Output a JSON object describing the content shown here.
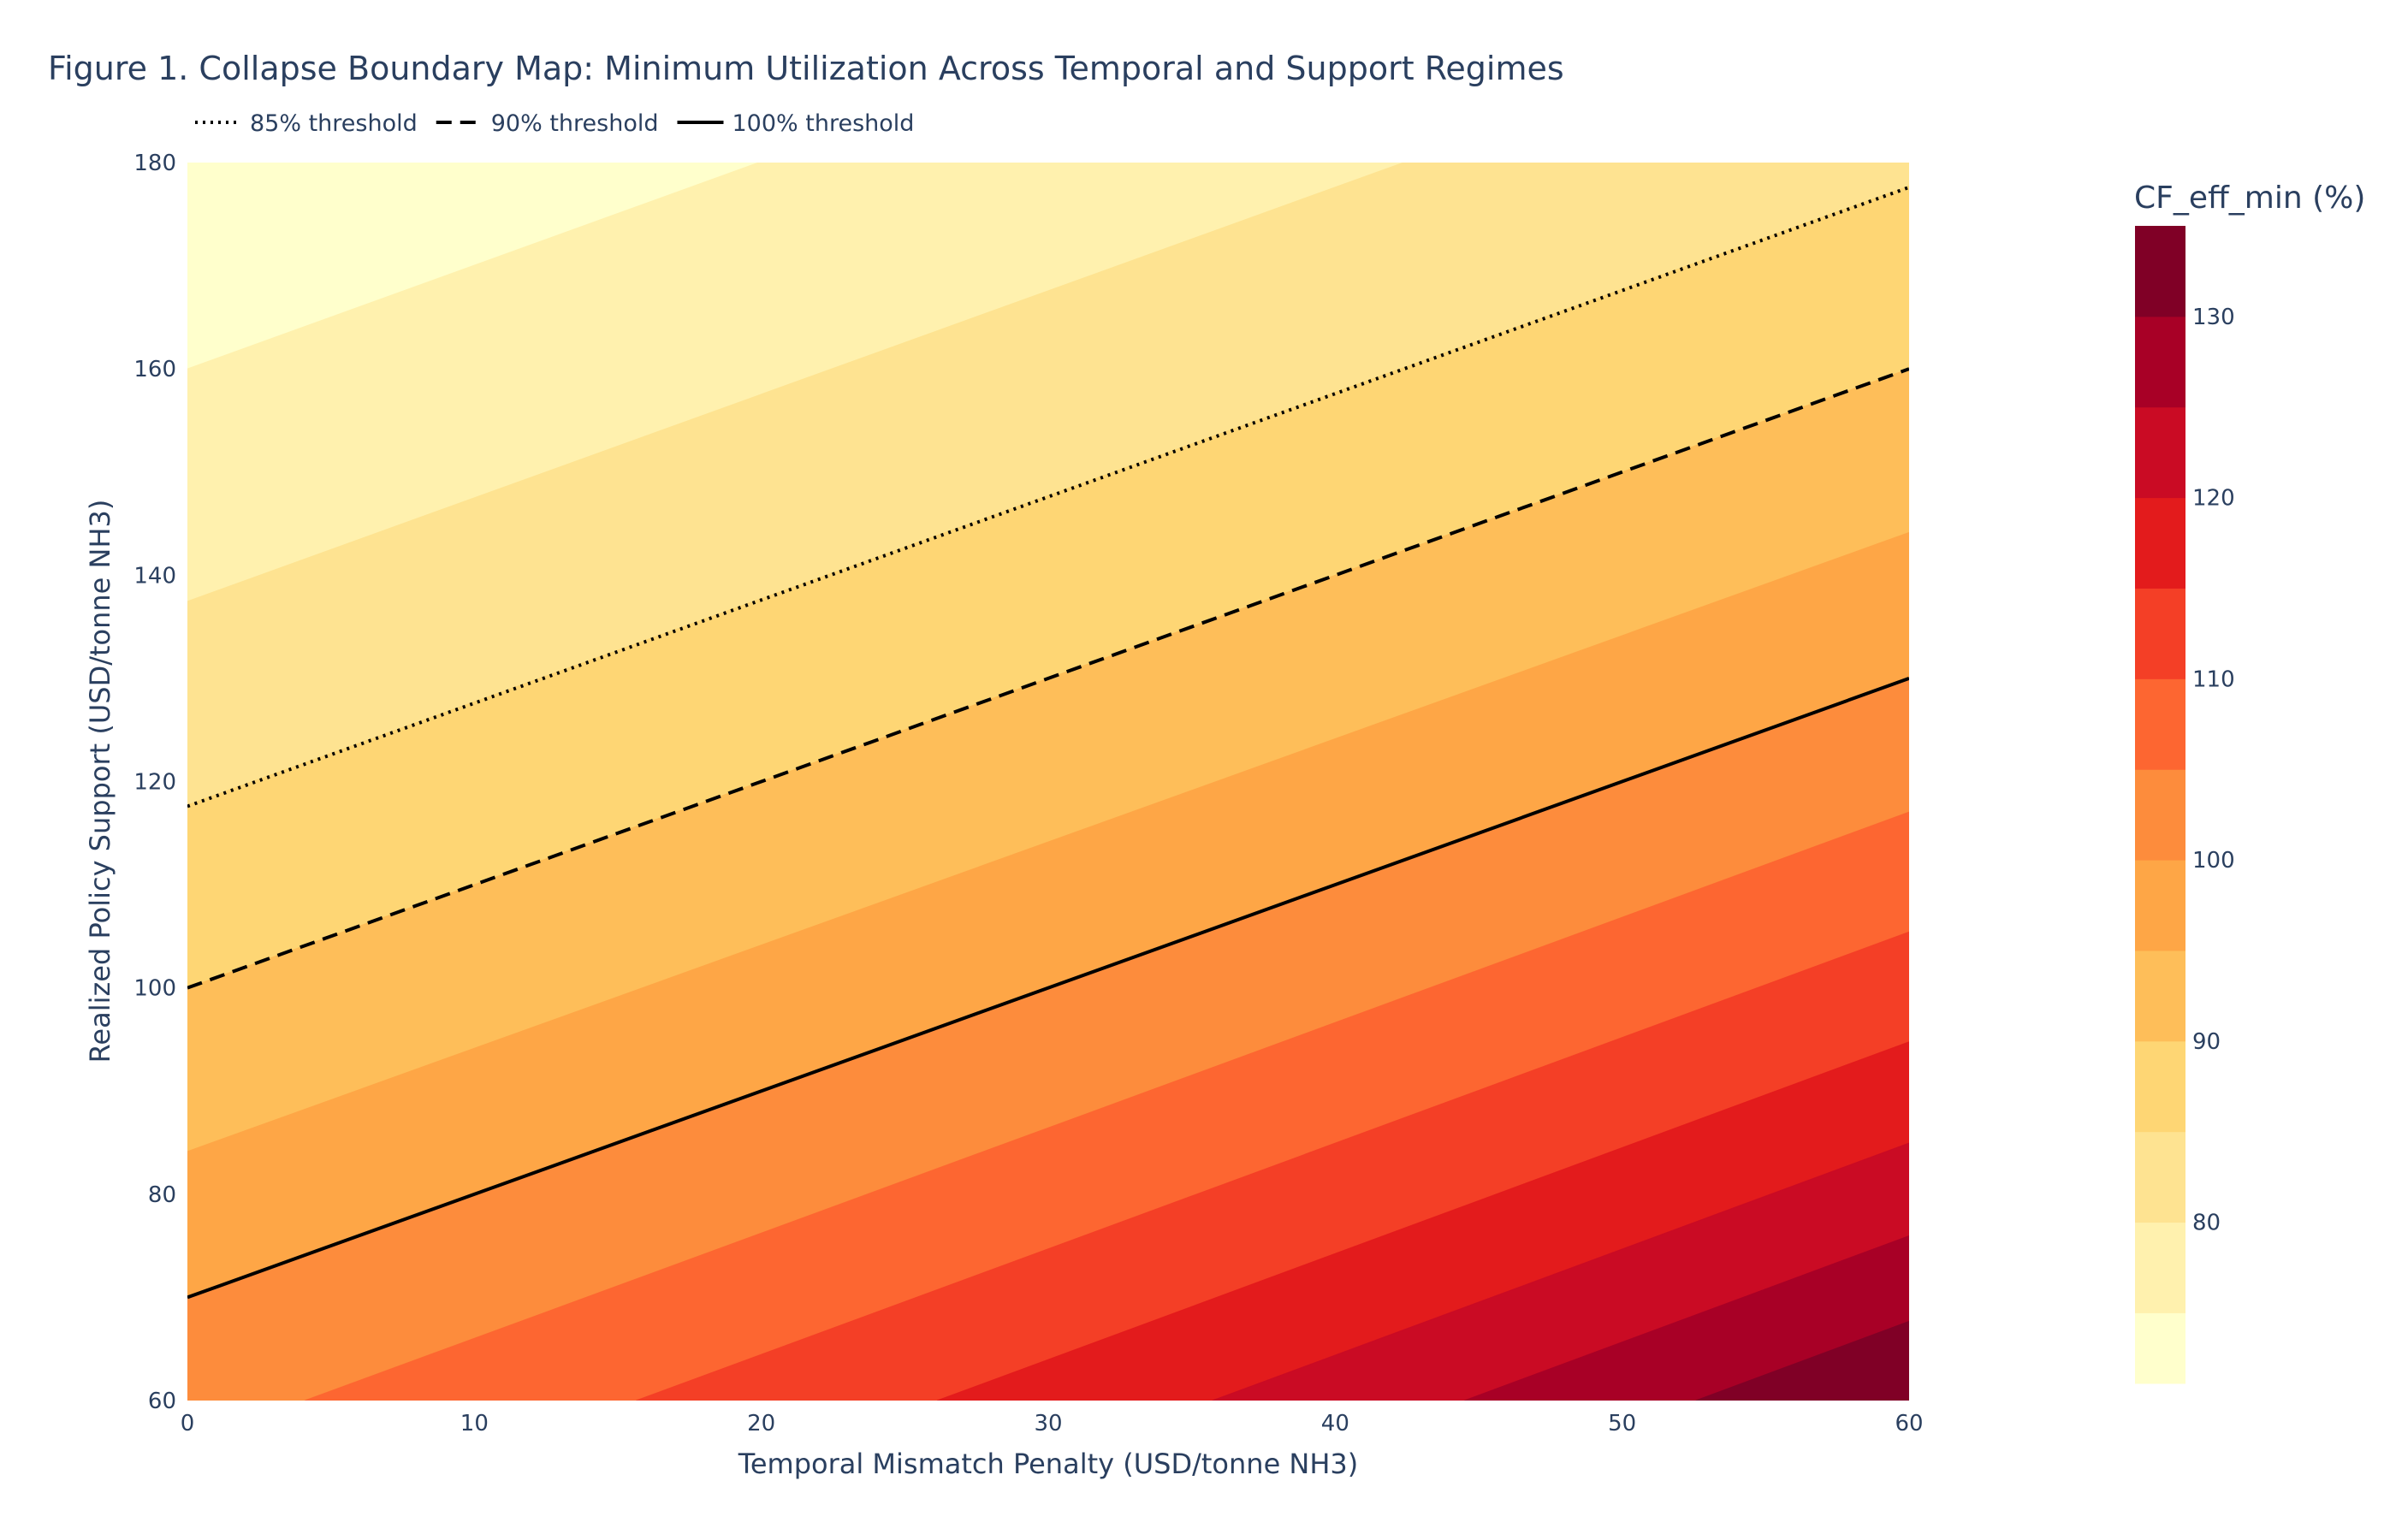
{
  "chart_data": {
    "type": "contour",
    "title": "Figure 1. Collapse Boundary Map: Minimum Utilization Across Temporal and Support Regimes",
    "xlabel": "Temporal Mismatch Penalty (USD/tonne NH3)",
    "ylabel": "Realized Policy Support (USD/tonne NH3)",
    "xlim": [
      0,
      60
    ],
    "ylim": [
      60,
      180
    ],
    "xticks": [
      0,
      10,
      20,
      30,
      40,
      50,
      60
    ],
    "yticks": [
      60,
      80,
      100,
      120,
      140,
      160,
      180
    ],
    "x": [
      0,
      10,
      20,
      30,
      40,
      50,
      60
    ],
    "y": [
      60,
      80,
      100,
      120,
      140,
      160,
      180
    ],
    "z": [
      [
        103.8,
        108.0,
        112.5,
        117.4,
        122.7,
        128.6,
        135.0
      ],
      [
        96.4,
        100.0,
        103.8,
        108.0,
        112.5,
        117.4,
        122.7
      ],
      [
        90.0,
        93.1,
        96.4,
        100.0,
        103.8,
        108.0,
        112.5
      ],
      [
        84.4,
        87.1,
        90.0,
        93.1,
        96.4,
        100.0,
        103.8
      ],
      [
        79.4,
        81.8,
        84.4,
        87.1,
        90.0,
        93.1,
        96.4
      ],
      [
        75.0,
        77.1,
        79.4,
        81.8,
        84.4,
        87.1,
        90.0
      ],
      [
        71.1,
        73.0,
        75.0,
        77.1,
        79.4,
        81.8,
        84.4
      ]
    ],
    "contour_levels": {
      "start": 75,
      "end": 130,
      "size": 5
    },
    "zlim": [
      71.1,
      135.0
    ],
    "colorscale": "YlOrRd",
    "band_colors": [
      "#ffffcc",
      "#fff1ae",
      "#fee391",
      "#fed674",
      "#febe59",
      "#fea646",
      "#fd8c3c",
      "#fd6631",
      "#f43f26",
      "#e31b1c",
      "#ca0b24",
      "#a80026",
      "#800026"
    ],
    "colorbar": {
      "title": "CF_eff_min (%)",
      "ticks": [
        80,
        90,
        100,
        110,
        120,
        130
      ]
    },
    "grid": false,
    "legend_position": "top-left horizontal",
    "series": [
      {
        "name": "85% threshold",
        "dash": "dot",
        "color": "#000000",
        "points": [
          [
            0,
            117.6
          ],
          [
            60,
            177.6
          ]
        ]
      },
      {
        "name": "90% threshold",
        "dash": "dash",
        "color": "#000000",
        "points": [
          [
            0,
            100
          ],
          [
            60,
            160
          ]
        ]
      },
      {
        "name": "100% threshold",
        "dash": "solid",
        "color": "#000000",
        "points": [
          [
            0,
            70
          ],
          [
            60,
            130
          ]
        ]
      }
    ]
  }
}
